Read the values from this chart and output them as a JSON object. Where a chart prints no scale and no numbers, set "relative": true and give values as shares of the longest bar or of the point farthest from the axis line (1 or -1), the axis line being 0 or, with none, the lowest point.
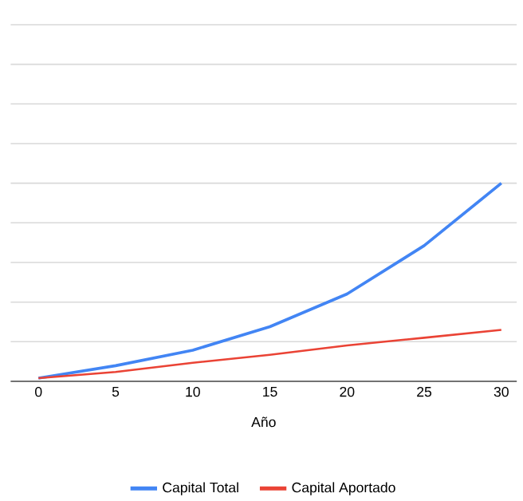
{
  "chart_data": {
    "type": "line",
    "xlabel": "Año",
    "x": [
      0,
      5,
      10,
      15,
      20,
      25,
      30
    ],
    "xlim": [
      -1.8,
      31
    ],
    "xticks": [
      0,
      5,
      10,
      15,
      20,
      25,
      30
    ],
    "relative": true,
    "grid": "y",
    "legend": "bottom",
    "marker": "none",
    "line_style": "solid",
    "series": [
      {
        "name": "Capital Total",
        "color": "#4285f4",
        "values": [
          0.016,
          0.079,
          0.157,
          0.276,
          0.441,
          0.685,
          1
        ]
      },
      {
        "name": "Capital Aportado",
        "color": "#ea4335",
        "values": [
          0.016,
          0.047,
          0.094,
          0.134,
          0.181,
          0.22,
          0.26
        ]
      }
    ]
  }
}
